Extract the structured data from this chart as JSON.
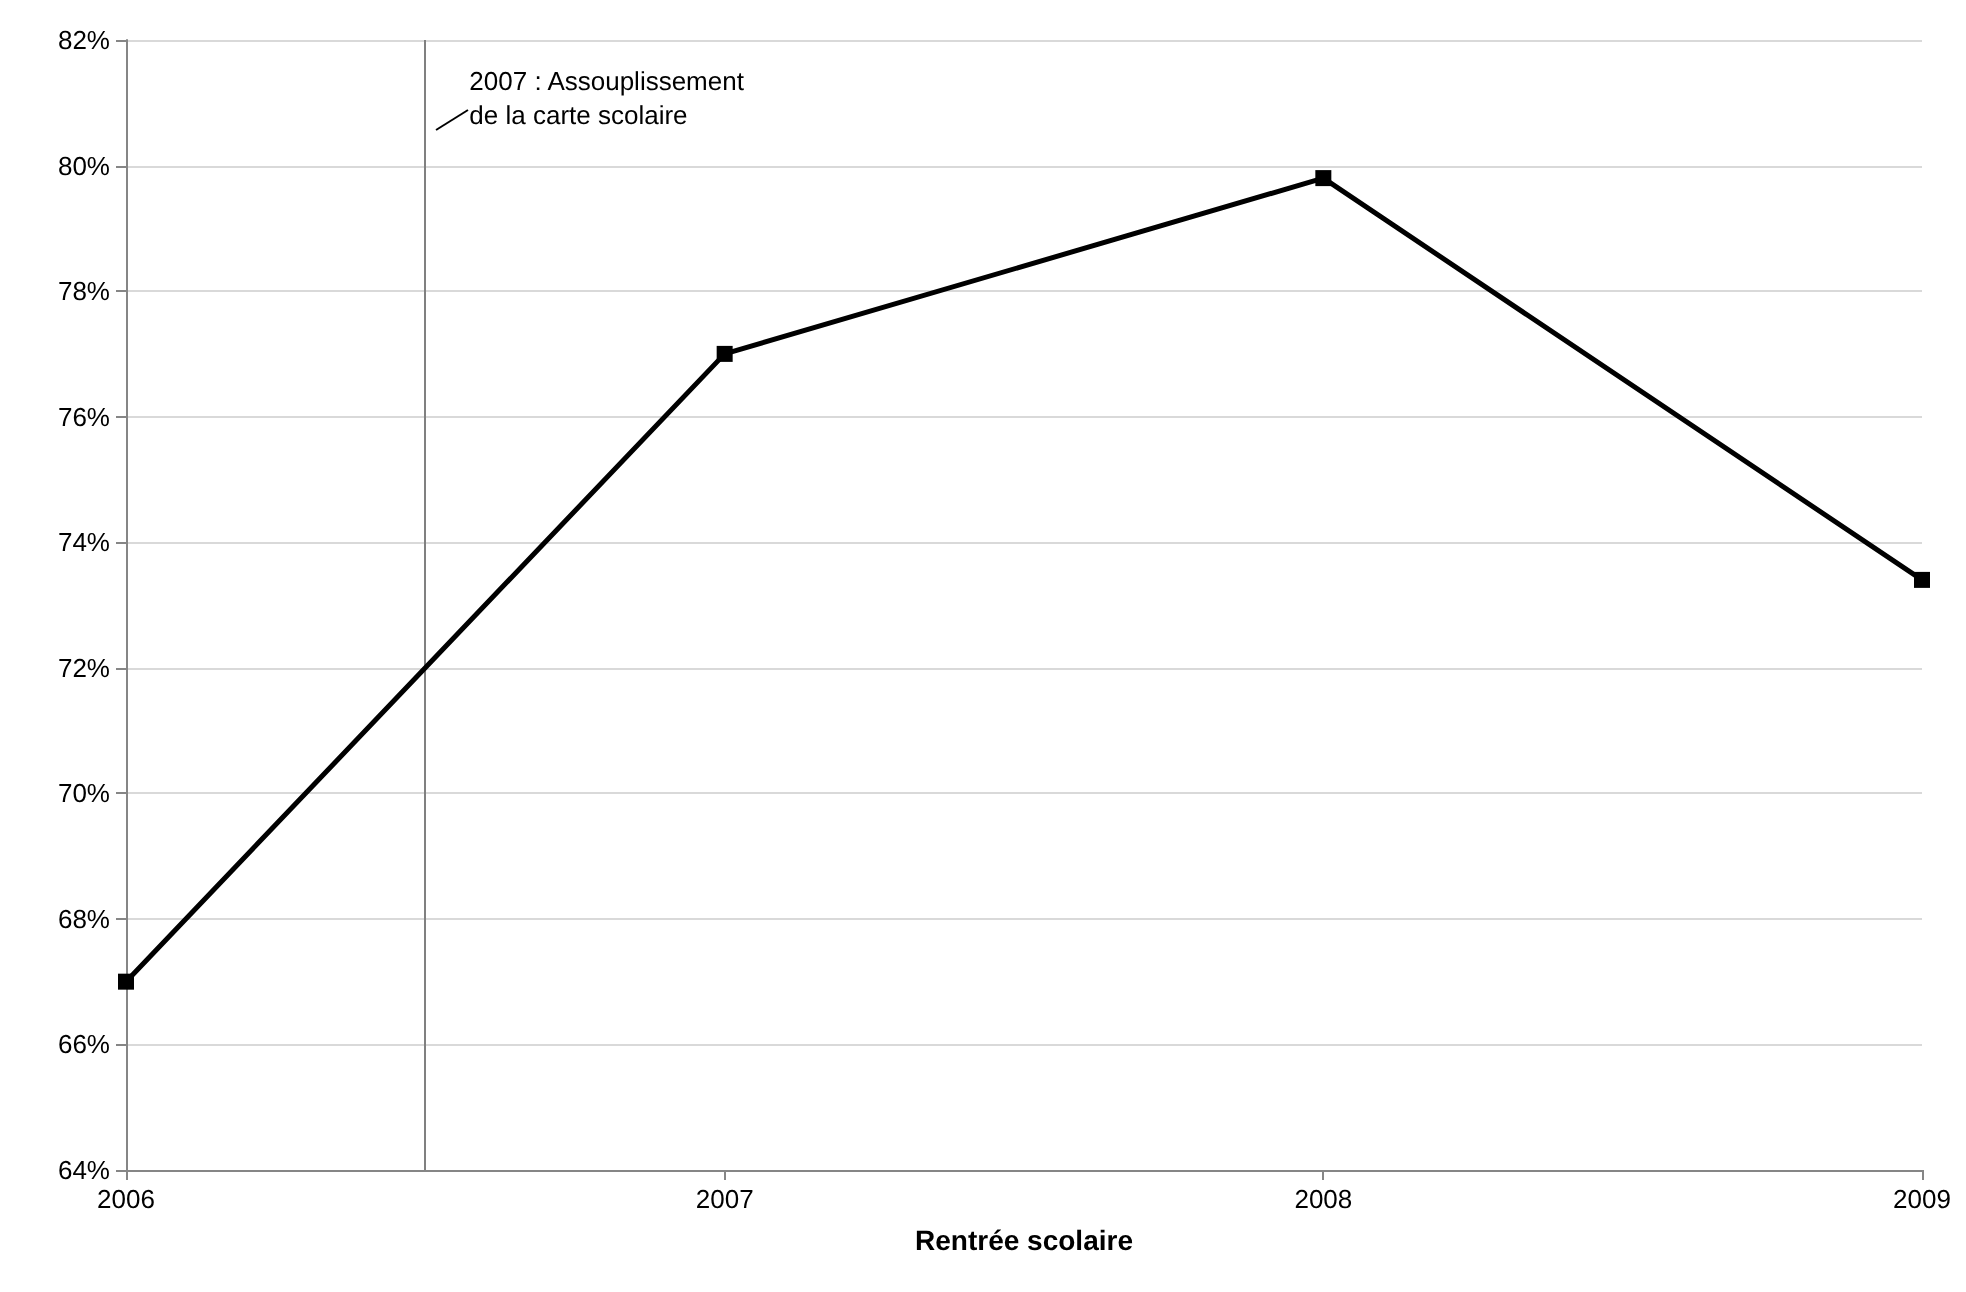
{
  "chart_data": {
    "type": "line",
    "xlabel": "Rentrée scolaire",
    "x": [
      2006,
      2007,
      2008,
      2009
    ],
    "series": [
      {
        "color": "#000000",
        "values": [
          67,
          77,
          79.8,
          73.4
        ]
      }
    ],
    "xlim": [
      2006,
      2009
    ],
    "xticks": [
      2006,
      2007,
      2008,
      2009
    ],
    "ylim": [
      64,
      82
    ],
    "yticks": [
      {
        "value": 64,
        "label": "64%"
      },
      {
        "value": 66,
        "label": "66%"
      },
      {
        "value": 68,
        "label": "68%"
      },
      {
        "value": 70,
        "label": "70%"
      },
      {
        "value": 72,
        "label": "72%"
      },
      {
        "value": 74,
        "label": "74%"
      },
      {
        "value": 76,
        "label": "76%"
      },
      {
        "value": 78,
        "label": "78%"
      },
      {
        "value": 80,
        "label": "80%"
      },
      {
        "value": 82,
        "label": "82%"
      }
    ],
    "ref_lines": [
      {
        "axis": "x",
        "value": 2006.5,
        "label": "2007 : Assouplissement\nde la carte scolaire",
        "color": "#808080"
      }
    ],
    "grid": "y",
    "marker": "square",
    "line_style": "solid"
  }
}
